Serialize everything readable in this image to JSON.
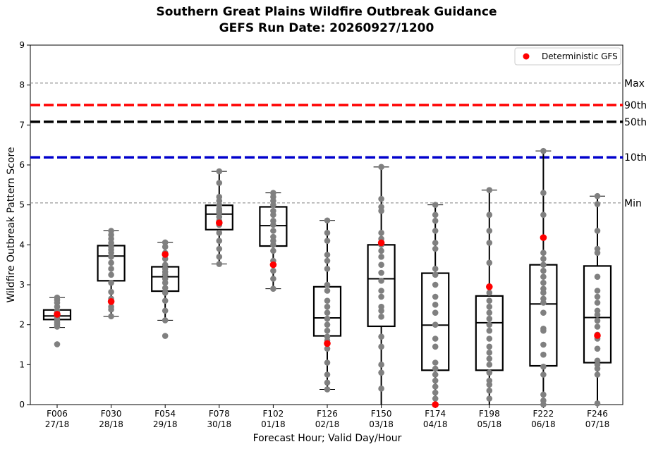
{
  "chart_data": {
    "type": "box",
    "title": "Southern Great Plains Wildfire Outbreak Guidance",
    "subtitle": "GEFS Run Date: 20260927/1200",
    "xlabel": "Forecast Hour; Valid Day/Hour",
    "ylabel": "Wildfire Outbreak Pattern Score",
    "ylim": [
      0,
      9
    ],
    "yticks": [
      0,
      1,
      2,
      3,
      4,
      5,
      6,
      7,
      8,
      9
    ],
    "grid": false,
    "legend": {
      "placement": "top-right",
      "entries": [
        "Deterministic GFS"
      ]
    },
    "reference_lines": [
      {
        "label": "Max",
        "value": 8.05,
        "color": "#808080",
        "style": "dashed-thin"
      },
      {
        "label": "90th",
        "value": 7.5,
        "color": "#ff0000",
        "style": "dashed-thick"
      },
      {
        "label": "50th",
        "value": 7.08,
        "color": "#000000",
        "style": "dashed-thick"
      },
      {
        "label": "10th",
        "value": 6.19,
        "color": "#0000cc",
        "style": "dashed-thick"
      },
      {
        "label": "Min",
        "value": 5.05,
        "color": "#808080",
        "style": "dashed-thin"
      }
    ],
    "categories": [
      {
        "hour": "F006",
        "valid": "27/18"
      },
      {
        "hour": "F030",
        "valid": "28/18"
      },
      {
        "hour": "F054",
        "valid": "29/18"
      },
      {
        "hour": "F078",
        "valid": "30/18"
      },
      {
        "hour": "F102",
        "valid": "01/18"
      },
      {
        "hour": "F126",
        "valid": "02/18"
      },
      {
        "hour": "F150",
        "valid": "03/18"
      },
      {
        "hour": "F174",
        "valid": "04/18"
      },
      {
        "hour": "F198",
        "valid": "05/18"
      },
      {
        "hour": "F222",
        "valid": "06/18"
      },
      {
        "hour": "F246",
        "valid": "07/18"
      }
    ],
    "boxes": [
      {
        "whisker_low": 1.93,
        "q1": 2.13,
        "median": 2.22,
        "q3": 2.37,
        "whisker_high": 2.68,
        "deterministic": 2.26,
        "members": [
          1.51,
          1.95,
          2.0,
          2.05,
          2.1,
          2.15,
          2.2,
          2.22,
          2.25,
          2.3,
          2.35,
          2.45,
          2.55,
          2.62,
          2.68
        ]
      },
      {
        "whisker_low": 2.21,
        "q1": 3.1,
        "median": 3.72,
        "q3": 3.98,
        "whisker_high": 4.35,
        "deterministic": 2.58,
        "members": [
          2.21,
          2.38,
          2.45,
          2.65,
          2.82,
          3.05,
          3.25,
          3.4,
          3.55,
          3.7,
          3.8,
          3.88,
          3.95,
          4.05,
          4.15,
          4.25,
          4.35
        ]
      },
      {
        "whisker_low": 2.11,
        "q1": 2.84,
        "median": 3.2,
        "q3": 3.45,
        "whisker_high": 4.06,
        "deterministic": 3.76,
        "members": [
          1.72,
          2.11,
          2.35,
          2.6,
          2.8,
          2.92,
          3.05,
          3.15,
          3.25,
          3.32,
          3.4,
          3.5,
          3.65,
          3.8,
          3.95,
          4.06
        ]
      },
      {
        "whisker_low": 3.52,
        "q1": 4.38,
        "median": 4.77,
        "q3": 4.99,
        "whisker_high": 5.84,
        "deterministic": 4.55,
        "members": [
          3.52,
          3.7,
          3.9,
          4.1,
          4.3,
          4.5,
          4.6,
          4.7,
          4.8,
          4.85,
          4.9,
          5.0,
          5.1,
          5.2,
          5.55,
          5.84
        ]
      },
      {
        "whisker_low": 2.9,
        "q1": 3.97,
        "median": 4.48,
        "q3": 4.95,
        "whisker_high": 5.3,
        "deterministic": 3.5,
        "members": [
          2.9,
          3.15,
          3.35,
          3.6,
          3.85,
          4.0,
          4.1,
          4.2,
          4.35,
          4.5,
          4.6,
          4.75,
          4.85,
          5.0,
          5.1,
          5.2,
          5.3
        ]
      },
      {
        "whisker_low": 0.38,
        "q1": 1.72,
        "median": 2.17,
        "q3": 2.95,
        "whisker_high": 4.61,
        "deterministic": 1.53,
        "members": [
          0.38,
          0.55,
          0.75,
          1.05,
          1.4,
          1.6,
          1.7,
          1.85,
          2.0,
          2.15,
          2.3,
          2.45,
          2.6,
          2.85,
          3.0,
          3.4,
          3.6,
          3.75,
          4.1,
          4.3,
          4.61
        ]
      },
      {
        "whisker_low": 0.0,
        "q1": 1.96,
        "median": 3.15,
        "q3": 4.0,
        "whisker_high": 5.95,
        "deterministic": 4.05,
        "members": [
          0.4,
          0.8,
          1.0,
          1.45,
          1.7,
          2.2,
          2.35,
          2.45,
          2.7,
          2.85,
          3.1,
          3.3,
          3.5,
          3.7,
          3.85,
          4.0,
          4.15,
          4.3,
          4.85,
          4.95,
          5.15,
          5.95
        ]
      },
      {
        "whisker_low": 0.0,
        "q1": 0.86,
        "median": 1.99,
        "q3": 3.29,
        "whisker_high": 5.0,
        "deterministic": 0.0,
        "members": [
          0.0,
          0.15,
          0.3,
          0.45,
          0.6,
          0.75,
          0.9,
          1.05,
          1.45,
          1.65,
          2.0,
          2.3,
          2.5,
          2.7,
          3.0,
          3.25,
          3.4,
          3.9,
          4.05,
          4.35,
          4.6,
          4.75,
          5.0
        ]
      },
      {
        "whisker_low": 0.0,
        "q1": 0.86,
        "median": 2.05,
        "q3": 2.72,
        "whisker_high": 5.37,
        "deterministic": 2.95,
        "members": [
          0.15,
          0.35,
          0.5,
          0.6,
          0.8,
          1.0,
          1.15,
          1.3,
          1.45,
          1.65,
          1.85,
          2.0,
          2.15,
          2.3,
          2.45,
          2.6,
          2.8,
          3.55,
          4.05,
          4.35,
          4.75,
          5.37
        ]
      },
      {
        "whisker_low": 0.0,
        "q1": 0.97,
        "median": 2.52,
        "q3": 3.5,
        "whisker_high": 6.35,
        "deterministic": 4.18,
        "members": [
          0.0,
          0.1,
          0.25,
          0.75,
          0.95,
          1.25,
          1.5,
          1.85,
          1.9,
          2.3,
          2.55,
          2.65,
          2.8,
          2.9,
          3.05,
          3.2,
          3.35,
          3.5,
          3.65,
          3.8,
          4.75,
          5.3,
          6.35
        ]
      },
      {
        "whisker_low": 0.0,
        "q1": 1.05,
        "median": 2.18,
        "q3": 3.47,
        "whisker_high": 5.22,
        "deterministic": 1.73,
        "members": [
          0.03,
          0.75,
          0.9,
          1.0,
          1.1,
          1.4,
          1.65,
          1.75,
          1.95,
          2.1,
          2.25,
          2.35,
          2.55,
          2.7,
          2.85,
          3.2,
          3.8,
          3.9,
          4.35,
          5.02,
          5.22
        ]
      }
    ],
    "colors": {
      "member_points": "#808080",
      "deterministic_points": "#ff0000",
      "box_edge": "#000000"
    }
  }
}
